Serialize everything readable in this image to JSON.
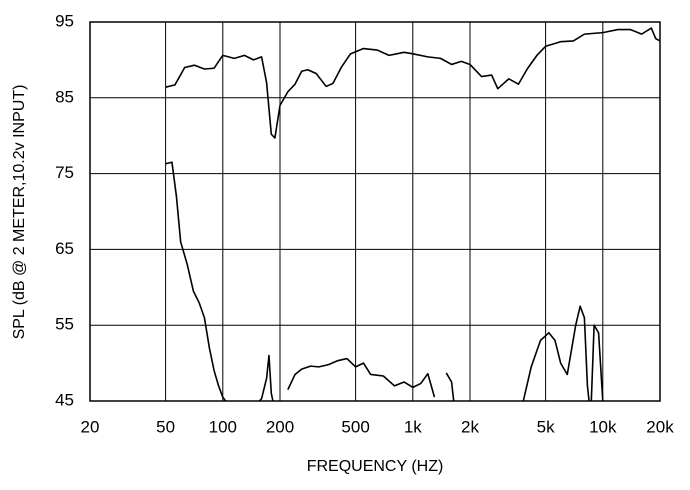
{
  "chart_data": {
    "type": "line",
    "xlabel": "FREQUENCY  (HZ)",
    "ylabel": "SPL (dB @ 2 METER,10.2v  INPUT)",
    "xscale": "log",
    "xlim": [
      20,
      20000
    ],
    "ylim": [
      45,
      95
    ],
    "xticks": [
      20,
      50,
      100,
      200,
      500,
      {
        "value": 1000,
        "label": "1k"
      },
      {
        "value": 2000,
        "label": "2k"
      },
      {
        "value": 5000,
        "label": "5k"
      },
      {
        "value": 10000,
        "label": "10k"
      },
      {
        "value": 20000,
        "label": "20k"
      }
    ],
    "yticks": [
      45,
      55,
      65,
      75,
      85,
      95
    ],
    "grid": true,
    "series": [
      {
        "color": "#000000",
        "x": [
          50,
          56,
          63,
          71,
          80,
          90,
          100,
          115,
          130,
          145,
          160,
          170,
          180,
          188,
          200,
          220,
          240,
          260,
          280,
          310,
          350,
          380,
          420,
          470,
          550,
          650,
          750,
          900,
          1000,
          1200,
          1400,
          1600,
          1800,
          2000,
          2300,
          2600,
          2800,
          3200,
          3600,
          4000,
          4500,
          5000,
          6000,
          7000,
          8000,
          10000,
          12000,
          14000,
          16000,
          18000,
          19000,
          20000
        ],
        "values": [
          86.4,
          86.7,
          89,
          89.3,
          88.8,
          88.9,
          90.6,
          90.2,
          90.6,
          90,
          90.4,
          87,
          80.2,
          79.7,
          84,
          85.8,
          86.8,
          88.5,
          88.7,
          88.2,
          86.5,
          86.9,
          89,
          90.8,
          91.5,
          91.3,
          90.6,
          91,
          90.8,
          90.4,
          90.2,
          89.4,
          89.8,
          89.4,
          87.8,
          88,
          86.2,
          87.5,
          86.8,
          88.8,
          90.6,
          91.8,
          92.4,
          92.5,
          93.4,
          93.6,
          94,
          94,
          93.4,
          94.2,
          92.8,
          92.5
        ]
      },
      {
        "color": "#000000",
        "x": [
          50,
          54,
          57,
          60,
          65,
          70,
          75,
          80,
          85,
          90,
          95,
          100,
          105,
          130,
          150,
          160,
          170,
          175,
          180,
          185,
          200,
          220,
          240,
          260,
          290,
          320,
          360,
          400,
          450,
          500,
          550,
          600,
          700,
          800,
          900,
          1000,
          1100,
          1200,
          1300,
          1400,
          1500,
          1600,
          1650,
          2500,
          3800,
          4200,
          4700,
          5200,
          5600,
          6000,
          6500,
          7200,
          7600,
          8000,
          8300,
          8500,
          8600,
          8700,
          9000,
          9500,
          10000
        ],
        "values": [
          76.3,
          76.5,
          72,
          66,
          63,
          59.5,
          58,
          56,
          52,
          49,
          47,
          45.5,
          44.8,
          null,
          44.6,
          45.3,
          48,
          51,
          46,
          44.6,
          null,
          46.5,
          48.5,
          49.2,
          49.6,
          49.5,
          49.8,
          50.3,
          50.6,
          49.5,
          50,
          48.5,
          48.3,
          47,
          47.5,
          46.8,
          47.3,
          48.6,
          45.5,
          null,
          48.7,
          47.5,
          44.5,
          null,
          44.8,
          49.5,
          53,
          54,
          53,
          50,
          48.5,
          55,
          57.5,
          56,
          47,
          44.6,
          null,
          45,
          55,
          54,
          45
        ]
      }
    ]
  }
}
